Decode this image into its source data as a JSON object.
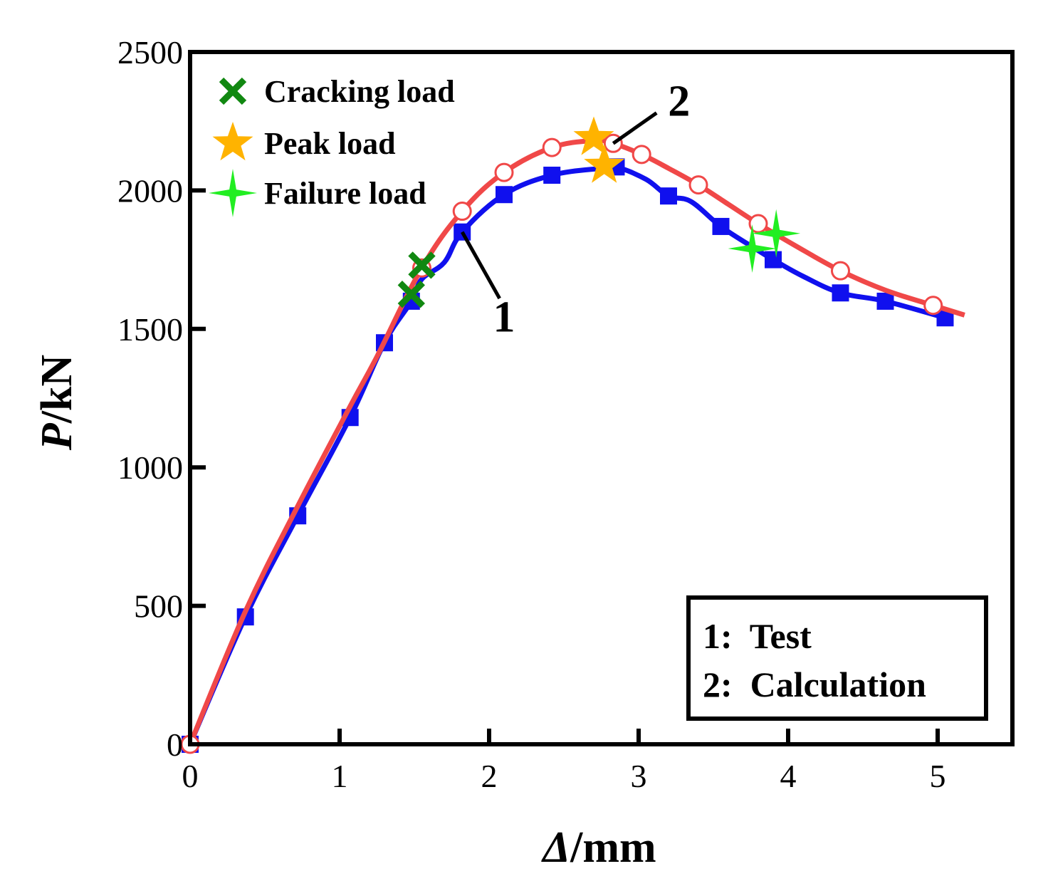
{
  "chart_data": {
    "type": "line",
    "xlabel_symbol": "Δ",
    "xlabel_unit": "/mm",
    "ylabel_symbol": "P",
    "ylabel_unit": "/kN",
    "xlim": [
      0,
      5.5
    ],
    "ylim": [
      0,
      2500
    ],
    "x_ticks": [
      0,
      1,
      2,
      3,
      4,
      5
    ],
    "x_tick_labels": [
      "0",
      "1",
      "2",
      "3",
      "4",
      "5"
    ],
    "y_ticks": [
      0,
      500,
      1000,
      1500,
      2000,
      2500
    ],
    "y_tick_labels": [
      "0",
      "500",
      "1000",
      "1500",
      "2000",
      "2500"
    ],
    "colors": {
      "test": "#1010ee",
      "calculation": "#f04848",
      "cracking": "#118811",
      "peak": "#ffb300",
      "failure": "#22ee22"
    },
    "series": [
      {
        "name": "Test",
        "curve_label": "1",
        "marker": "filled-square",
        "points": [
          [
            0,
            0
          ],
          [
            0.37,
            460
          ],
          [
            0.72,
            825
          ],
          [
            1.07,
            1180
          ],
          [
            1.3,
            1450
          ],
          [
            1.48,
            1600
          ],
          [
            1.55,
            1680
          ],
          [
            1.7,
            1740
          ],
          [
            1.82,
            1850
          ],
          [
            2.1,
            1985
          ],
          [
            2.42,
            2055
          ],
          [
            2.75,
            2080
          ],
          [
            2.85,
            2085
          ],
          [
            3.05,
            2040
          ],
          [
            3.2,
            1980
          ],
          [
            3.35,
            1960
          ],
          [
            3.55,
            1870
          ],
          [
            3.75,
            1800
          ],
          [
            3.9,
            1750
          ],
          [
            4.1,
            1690
          ],
          [
            4.35,
            1630
          ],
          [
            4.65,
            1600
          ],
          [
            5.05,
            1540
          ]
        ],
        "marker_points": [
          [
            0,
            0
          ],
          [
            0.37,
            460
          ],
          [
            0.72,
            825
          ],
          [
            1.07,
            1180
          ],
          [
            1.3,
            1450
          ],
          [
            1.48,
            1600
          ],
          [
            1.82,
            1850
          ],
          [
            2.1,
            1985
          ],
          [
            2.42,
            2055
          ],
          [
            2.85,
            2085
          ],
          [
            3.2,
            1980
          ],
          [
            3.55,
            1870
          ],
          [
            3.9,
            1750
          ],
          [
            4.35,
            1630
          ],
          [
            4.65,
            1600
          ],
          [
            5.05,
            1540
          ]
        ]
      },
      {
        "name": "Calculation",
        "curve_label": "2",
        "marker": "open-circle",
        "points": [
          [
            0,
            0
          ],
          [
            0.37,
            480
          ],
          [
            0.72,
            860
          ],
          [
            1.07,
            1220
          ],
          [
            1.25,
            1400
          ],
          [
            1.55,
            1720
          ],
          [
            1.82,
            1925
          ],
          [
            2.1,
            2065
          ],
          [
            2.42,
            2155
          ],
          [
            2.7,
            2180
          ],
          [
            2.83,
            2170
          ],
          [
            3.02,
            2130
          ],
          [
            3.2,
            2080
          ],
          [
            3.4,
            2020
          ],
          [
            3.6,
            1950
          ],
          [
            3.8,
            1880
          ],
          [
            4.05,
            1800
          ],
          [
            4.35,
            1710
          ],
          [
            4.65,
            1640
          ],
          [
            4.97,
            1585
          ],
          [
            5.18,
            1550
          ]
        ],
        "marker_points": [
          [
            0,
            0
          ],
          [
            1.55,
            1720
          ],
          [
            1.82,
            1925
          ],
          [
            2.1,
            2065
          ],
          [
            2.42,
            2155
          ],
          [
            2.83,
            2170
          ],
          [
            3.02,
            2130
          ],
          [
            3.4,
            2020
          ],
          [
            3.8,
            1880
          ],
          [
            4.35,
            1710
          ],
          [
            4.97,
            1585
          ]
        ]
      }
    ],
    "annotations": {
      "cracking_load": [
        [
          1.48,
          1625
        ],
        [
          1.55,
          1730
        ]
      ],
      "peak_load": [
        [
          2.7,
          2190
        ],
        [
          2.77,
          2090
        ]
      ],
      "failure_load": [
        [
          3.76,
          1790
        ],
        [
          3.92,
          1845
        ]
      ]
    },
    "curve_label_leaders": [
      {
        "label": "1",
        "from": [
          1.82,
          1850
        ],
        "to": [
          2.07,
          1610
        ],
        "text_at": [
          2.1,
          1490
        ]
      },
      {
        "label": "2",
        "from": [
          2.83,
          2170
        ],
        "to": [
          3.12,
          2280
        ],
        "text_at": [
          3.27,
          2270
        ]
      }
    ],
    "marker_legend": [
      {
        "label": "Cracking load",
        "symbol": "cross"
      },
      {
        "label": "Peak load",
        "symbol": "star"
      },
      {
        "label": "Failure load",
        "symbol": "four-point-star"
      }
    ],
    "legend_box": [
      "1:  Test",
      "2:  Calculation"
    ]
  }
}
